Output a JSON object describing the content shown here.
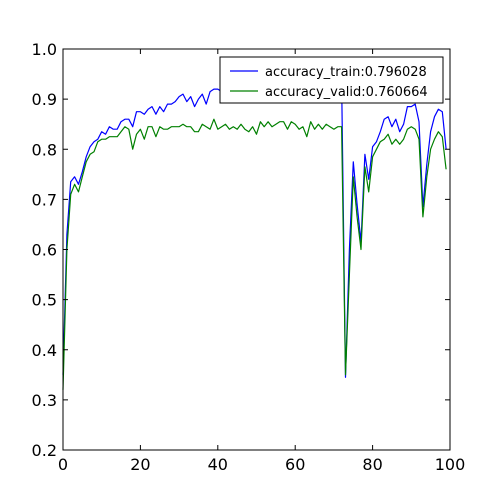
{
  "chart_data": {
    "type": "line",
    "title": "",
    "xlabel": "",
    "ylabel": "",
    "xlim": [
      0,
      100
    ],
    "ylim": [
      0.2,
      1.0
    ],
    "xticks": [
      "0",
      "20",
      "40",
      "60",
      "80",
      "100"
    ],
    "yticks": [
      "0.2",
      "0.3",
      "0.4",
      "0.5",
      "0.6",
      "0.7",
      "0.8",
      "0.9",
      "1.0"
    ],
    "grid": false,
    "legend_position": "top-right",
    "series": [
      {
        "name": "accuracy_train:0.796028",
        "color": "#0000ff",
        "x": [
          0,
          1,
          2,
          3,
          4,
          5,
          6,
          7,
          8,
          9,
          10,
          11,
          12,
          13,
          14,
          15,
          16,
          17,
          18,
          19,
          20,
          21,
          22,
          23,
          24,
          25,
          26,
          27,
          28,
          29,
          30,
          31,
          32,
          33,
          34,
          35,
          36,
          37,
          38,
          39,
          40,
          41,
          42,
          43,
          44,
          45,
          46,
          47,
          48,
          49,
          50,
          51,
          52,
          53,
          54,
          55,
          56,
          57,
          58,
          59,
          60,
          61,
          62,
          63,
          64,
          65,
          66,
          67,
          68,
          69,
          70,
          71,
          72,
          73,
          74,
          75,
          76,
          77,
          78,
          79,
          80,
          81,
          82,
          83,
          84,
          85,
          86,
          87,
          88,
          89,
          90,
          91,
          92,
          93,
          94,
          95,
          96,
          97,
          98,
          99
        ],
        "values": [
          0.35,
          0.63,
          0.735,
          0.745,
          0.73,
          0.755,
          0.785,
          0.805,
          0.815,
          0.82,
          0.835,
          0.83,
          0.845,
          0.84,
          0.84,
          0.855,
          0.86,
          0.86,
          0.845,
          0.875,
          0.875,
          0.87,
          0.88,
          0.885,
          0.87,
          0.885,
          0.875,
          0.89,
          0.89,
          0.895,
          0.905,
          0.91,
          0.895,
          0.905,
          0.885,
          0.9,
          0.91,
          0.89,
          0.915,
          0.92,
          0.92,
          0.915,
          0.925,
          0.92,
          0.925,
          0.925,
          0.92,
          0.93,
          0.925,
          0.93,
          0.93,
          0.935,
          0.93,
          0.935,
          0.94,
          0.935,
          0.94,
          0.935,
          0.94,
          0.94,
          0.935,
          0.94,
          0.945,
          0.94,
          0.945,
          0.94,
          0.945,
          0.94,
          0.945,
          0.945,
          0.94,
          0.945,
          0.94,
          0.345,
          0.6,
          0.775,
          0.69,
          0.615,
          0.79,
          0.74,
          0.805,
          0.815,
          0.835,
          0.86,
          0.865,
          0.845,
          0.86,
          0.835,
          0.85,
          0.885,
          0.885,
          0.89,
          0.855,
          0.685,
          0.77,
          0.835,
          0.865,
          0.88,
          0.875,
          0.8
        ]
      },
      {
        "name": "accuracy_valid:0.760664",
        "color": "#008000",
        "x": [
          0,
          1,
          2,
          3,
          4,
          5,
          6,
          7,
          8,
          9,
          10,
          11,
          12,
          13,
          14,
          15,
          16,
          17,
          18,
          19,
          20,
          21,
          22,
          23,
          24,
          25,
          26,
          27,
          28,
          29,
          30,
          31,
          32,
          33,
          34,
          35,
          36,
          37,
          38,
          39,
          40,
          41,
          42,
          43,
          44,
          45,
          46,
          47,
          48,
          49,
          50,
          51,
          52,
          53,
          54,
          55,
          56,
          57,
          58,
          59,
          60,
          61,
          62,
          63,
          64,
          65,
          66,
          67,
          68,
          69,
          70,
          71,
          72,
          73,
          74,
          75,
          76,
          77,
          78,
          79,
          80,
          81,
          82,
          83,
          84,
          85,
          86,
          87,
          88,
          89,
          90,
          91,
          92,
          93,
          94,
          95,
          96,
          97,
          98,
          99
        ],
        "values": [
          0.32,
          0.6,
          0.71,
          0.73,
          0.715,
          0.745,
          0.775,
          0.79,
          0.795,
          0.815,
          0.82,
          0.82,
          0.825,
          0.825,
          0.825,
          0.835,
          0.845,
          0.84,
          0.8,
          0.83,
          0.84,
          0.82,
          0.845,
          0.845,
          0.825,
          0.845,
          0.84,
          0.84,
          0.845,
          0.845,
          0.845,
          0.85,
          0.845,
          0.845,
          0.835,
          0.835,
          0.85,
          0.845,
          0.84,
          0.86,
          0.84,
          0.845,
          0.85,
          0.84,
          0.845,
          0.84,
          0.85,
          0.84,
          0.835,
          0.845,
          0.83,
          0.855,
          0.845,
          0.855,
          0.845,
          0.85,
          0.855,
          0.855,
          0.84,
          0.855,
          0.85,
          0.84,
          0.845,
          0.825,
          0.855,
          0.84,
          0.85,
          0.84,
          0.85,
          0.845,
          0.84,
          0.845,
          0.845,
          0.35,
          0.55,
          0.745,
          0.665,
          0.6,
          0.765,
          0.715,
          0.785,
          0.8,
          0.815,
          0.82,
          0.83,
          0.81,
          0.82,
          0.81,
          0.82,
          0.84,
          0.845,
          0.84,
          0.82,
          0.665,
          0.745,
          0.8,
          0.82,
          0.835,
          0.825,
          0.76
        ]
      }
    ]
  }
}
